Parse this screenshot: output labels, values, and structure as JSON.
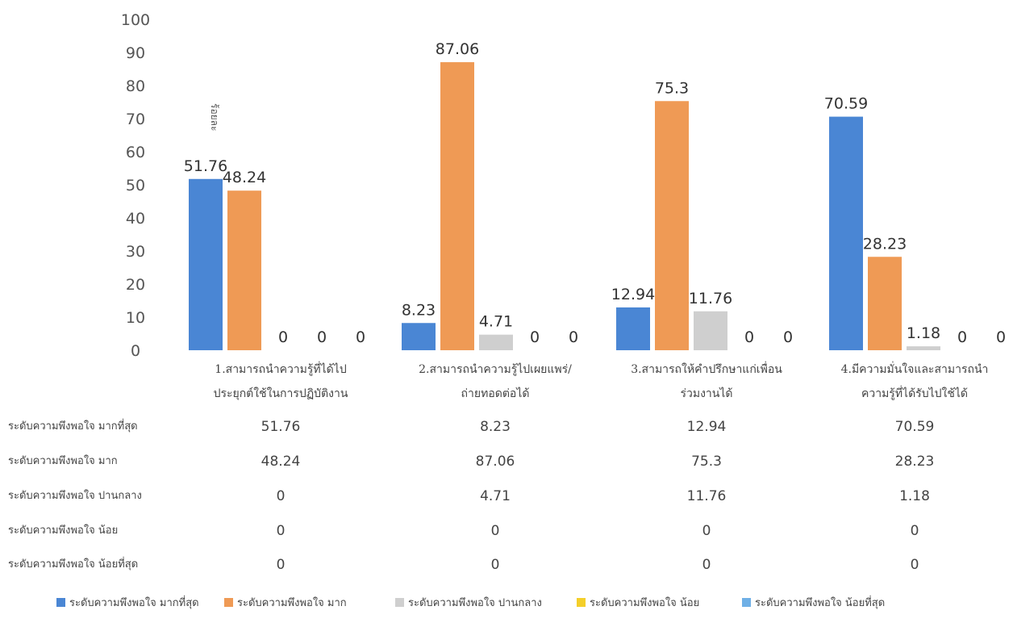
{
  "chart_data": {
    "type": "bar",
    "title": "",
    "ylabel": "ร้อยละ",
    "ylim": [
      0,
      100
    ],
    "yticks": [
      0,
      10,
      20,
      30,
      40,
      50,
      60,
      70,
      80,
      90,
      100
    ],
    "grid": false,
    "legend_position": "bottom",
    "categories": [
      [
        "1.สามารถนำความรู้ที่ได้ไป",
        "ประยุกต์ใช้ในการปฏิบัติงาน"
      ],
      [
        "2.สามารถนำความรู้ไปเผยแพร่/",
        "ถ่ายทอดต่อได้"
      ],
      [
        "3.สามารถให้คำปรึกษาแก่เพื่อน",
        "ร่วมงานได้"
      ],
      [
        "4.มีความมั่นใจและสามารถนำ",
        "ความรู้ที่ได้รับไปใช้ได้"
      ]
    ],
    "series": [
      {
        "name": "ระดับความพึงพอใจ มากที่สุด",
        "color": "#4a86d4",
        "values": [
          51.76,
          8.23,
          12.94,
          70.59
        ]
      },
      {
        "name": "ระดับความพึงพอใจ มาก",
        "color": "#ef9a55",
        "values": [
          48.24,
          87.06,
          75.3,
          28.23
        ]
      },
      {
        "name": "ระดับความพึงพอใจ ปานกลาง",
        "color": "#cfcfcf",
        "values": [
          0,
          4.71,
          11.76,
          1.18
        ]
      },
      {
        "name": "ระดับความพึงพอใจ น้อย",
        "color": "#f4cf2a",
        "values": [
          0,
          0,
          0,
          0
        ]
      },
      {
        "name": "ระดับความพึงพอใจ น้อยที่สุด",
        "color": "#6fb0e6",
        "values": [
          0,
          0,
          0,
          0
        ]
      }
    ],
    "data_table": true
  }
}
